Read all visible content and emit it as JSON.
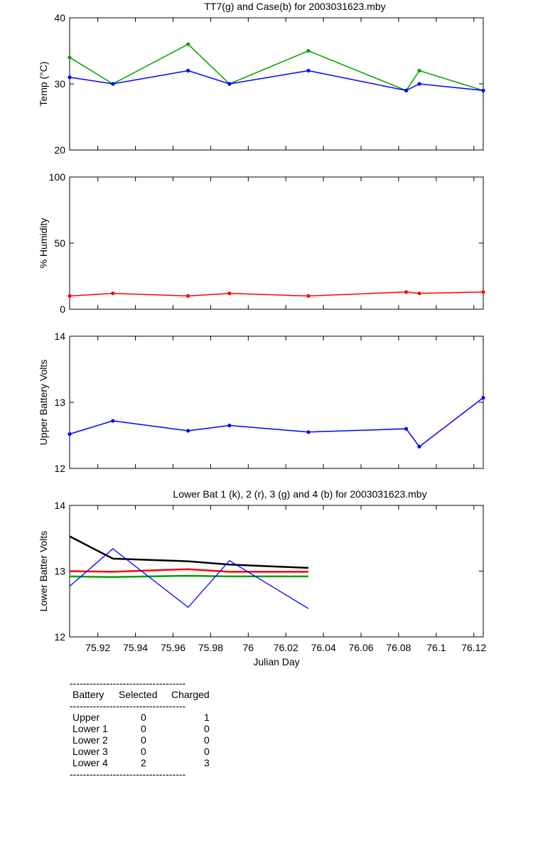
{
  "chart_data": [
    {
      "type": "line",
      "title": "TT7(g) and Case(b) for 2003031623.mby",
      "xlabel": "",
      "ylabel": "Temp  (°C)",
      "xlim": [
        75.905,
        76.125
      ],
      "ylim": [
        20,
        40
      ],
      "yticks": [
        20,
        30,
        40
      ],
      "x": [
        75.905,
        75.928,
        75.968,
        75.99,
        76.032,
        76.084,
        76.091,
        76.125
      ],
      "series": [
        {
          "name": "TT7",
          "color": "#00a000",
          "markers": true,
          "values": [
            34,
            30,
            36,
            30,
            35,
            29,
            32,
            29
          ]
        },
        {
          "name": "Case",
          "color": "#0000ff",
          "markers": true,
          "values": [
            31,
            30,
            32,
            30,
            32,
            29,
            30,
            29
          ]
        }
      ]
    },
    {
      "type": "line",
      "title": "",
      "xlabel": "",
      "ylabel": "% Humidity",
      "xlim": [
        75.905,
        76.125
      ],
      "ylim": [
        0,
        100
      ],
      "yticks": [
        0,
        50,
        100
      ],
      "x": [
        75.905,
        75.928,
        75.968,
        75.99,
        76.032,
        76.084,
        76.091,
        76.125
      ],
      "series": [
        {
          "name": "",
          "color": "#ff0000",
          "markers": true,
          "values": [
            10,
            12,
            10,
            12,
            10,
            13,
            12,
            13
          ]
        }
      ]
    },
    {
      "type": "line",
      "title": "",
      "xlabel": "",
      "ylabel": "Upper Battery Volts",
      "xlim": [
        75.905,
        76.125
      ],
      "ylim": [
        12,
        14
      ],
      "yticks": [
        12,
        13,
        14
      ],
      "x": [
        75.905,
        75.928,
        75.968,
        75.99,
        76.032,
        76.084,
        76.091,
        76.125
      ],
      "series": [
        {
          "name": "",
          "color": "#0000ff",
          "markers": true,
          "values": [
            12.52,
            12.72,
            12.57,
            12.65,
            12.55,
            12.6,
            12.33,
            13.07
          ]
        }
      ]
    },
    {
      "type": "line",
      "title": "Lower Bat 1 (k), 2 (r), 3 (g) and 4 (b) for 2003031623.mby",
      "xlabel": "Julian Day",
      "ylabel": "Lower Batter Volts",
      "xlim": [
        75.905,
        76.125
      ],
      "ylim": [
        12,
        14
      ],
      "yticks": [
        12,
        13,
        14
      ],
      "xticks": [
        "75.92",
        "75.94",
        "75.96",
        "75.98",
        "76",
        "76.02",
        "76.04",
        "76.06",
        "76.08",
        "76.1",
        "76.12"
      ],
      "xtick_values": [
        75.92,
        75.94,
        75.96,
        75.98,
        76.0,
        76.02,
        76.04,
        76.06,
        76.08,
        76.1,
        76.12
      ],
      "x": [
        75.905,
        75.928,
        75.968,
        75.99,
        76.032
      ],
      "series": [
        {
          "name": "1",
          "color": "#000000",
          "markers": false,
          "values": [
            13.53,
            13.19,
            13.15,
            13.1,
            13.05
          ]
        },
        {
          "name": "2",
          "color": "#ff0000",
          "markers": false,
          "values": [
            13.0,
            12.99,
            13.03,
            12.99,
            12.99
          ]
        },
        {
          "name": "3",
          "color": "#00a000",
          "markers": false,
          "values": [
            12.92,
            12.91,
            12.93,
            12.92,
            12.92
          ]
        },
        {
          "name": "4",
          "color": "#0000ff",
          "markers": false,
          "values": [
            12.77,
            13.34,
            12.45,
            13.16,
            12.43
          ]
        }
      ]
    }
  ],
  "summary": {
    "headers": [
      "Battery",
      "Selected",
      "Charged"
    ],
    "rows": [
      [
        "Upper",
        "0",
        "1"
      ],
      [
        "Lower 1",
        "0",
        "0"
      ],
      [
        "Lower 2",
        "0",
        "0"
      ],
      [
        "Lower 3",
        "0",
        "0"
      ],
      [
        "Lower 4",
        "2",
        "3"
      ]
    ],
    "rule": "-----------------------------------"
  }
}
